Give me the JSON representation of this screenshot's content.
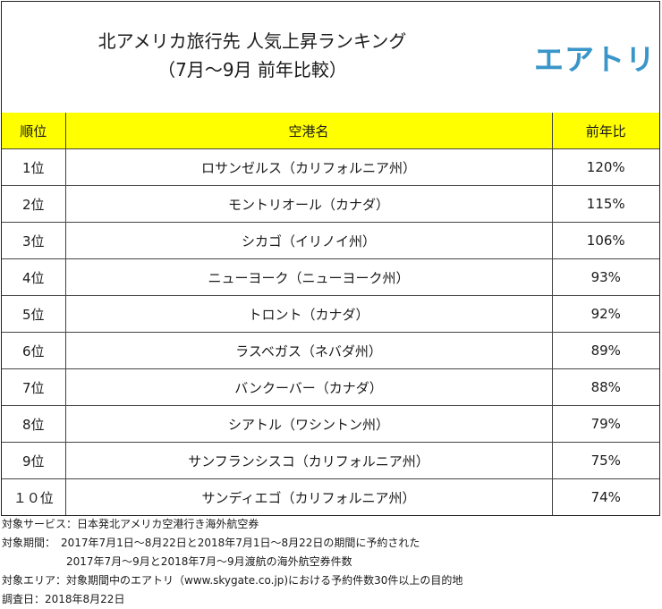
{
  "header": {
    "title_line1": "北アメリカ旅行先 人気上昇ランキング",
    "title_line2": "（7月～9月 前年比較）",
    "logo_text": "エアトリ",
    "logo_color": "#3a96c8"
  },
  "table": {
    "header_color": "#ffff00",
    "columns": [
      "順位",
      "空港名",
      "前年比"
    ],
    "rows": [
      {
        "rank": "1位",
        "name": "ロサンゼルス（カリフォルニア州）",
        "pct": "120%"
      },
      {
        "rank": "2位",
        "name": "モントリオール（カナダ）",
        "pct": "115%"
      },
      {
        "rank": "3位",
        "name": "シカゴ（イリノイ州）",
        "pct": "106%"
      },
      {
        "rank": "4位",
        "name": "ニューヨーク（ニューヨーク州）",
        "pct": "93%"
      },
      {
        "rank": "5位",
        "name": "トロント（カナダ）",
        "pct": "92%"
      },
      {
        "rank": "6位",
        "name": "ラスベガス（ネバダ州）",
        "pct": "89%"
      },
      {
        "rank": "7位",
        "name": "バンクーバー（カナダ）",
        "pct": "88%"
      },
      {
        "rank": "8位",
        "name": "シアトル（ワシントン州）",
        "pct": "79%"
      },
      {
        "rank": "9位",
        "name": "サンフランシスコ（カリフォルニア州）",
        "pct": "75%"
      },
      {
        "rank": "１０位",
        "name": "サンディエゴ（カリフォルニア州）",
        "pct": "74%"
      }
    ]
  },
  "notes": {
    "service": "対象サービス：日本発北アメリカ空港行き海外航空券",
    "period_line1": "対象期間：　2017年7月1日～8月22日と2018年7月1日～8月22日の期間に予約された",
    "period_line2": "2017年7月～9月と2018年7月～9月渡航の海外航空券件数",
    "area": "対象エリア：対象期間中のエアトリ（www.skygate.co.jp)における予約件数30件以上の目的地",
    "survey_date": "調査日：2018年8月22日"
  }
}
